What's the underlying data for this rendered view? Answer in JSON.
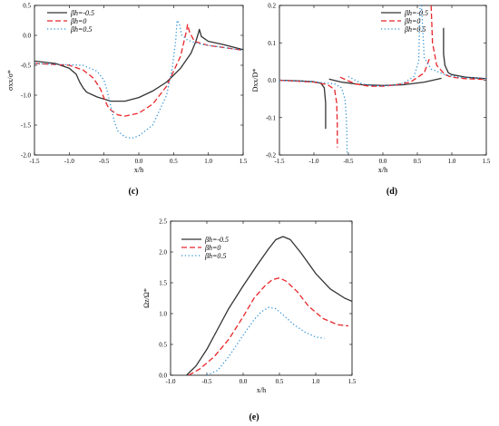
{
  "colors": {
    "series1": "#333333",
    "series2": "#e8262a",
    "series3": "#2a8fd6"
  },
  "chart_data": [
    {
      "type": "line",
      "panel": "(c)",
      "xlabel": "x/h",
      "ylabel": "σxx/σ*",
      "xlim": [
        -1.5,
        1.5
      ],
      "ylim": [
        -2.0,
        0.5
      ],
      "xticks": [
        -1.5,
        -1.0,
        -0.5,
        0.0,
        0.5,
        1.0,
        1.5
      ],
      "yticks": [
        -2.0,
        -1.5,
        -1.0,
        -0.5,
        0.0,
        0.5
      ],
      "xtick_labels": [
        "-1.5",
        "-1.0",
        "-0.5",
        "0.0",
        "0.5",
        "1.0",
        "1.5"
      ],
      "ytick_labels": [
        "-2.0",
        "-1.5",
        "-1.0",
        "-0.5",
        "0.0",
        "0.5"
      ],
      "legend_position": "top-left",
      "series": [
        {
          "name": "βh=-0.5",
          "style": "solid",
          "x": [
            -1.5,
            -1.2,
            -1.0,
            -0.9,
            -0.85,
            -0.8,
            -0.75,
            -0.6,
            -0.4,
            -0.2,
            0.0,
            0.2,
            0.4,
            0.6,
            0.75,
            0.82,
            0.86,
            0.87,
            0.9,
            1.0,
            1.2,
            1.5
          ],
          "y": [
            -0.43,
            -0.47,
            -0.55,
            -0.65,
            -0.78,
            -0.88,
            -0.95,
            -1.03,
            -1.1,
            -1.1,
            -1.04,
            -0.93,
            -0.78,
            -0.55,
            -0.3,
            -0.1,
            0.05,
            0.1,
            -0.02,
            -0.1,
            -0.15,
            -0.24
          ]
        },
        {
          "name": "βh=0",
          "style": "dashed",
          "x": [
            -1.5,
            -1.0,
            -0.8,
            -0.65,
            -0.55,
            -0.5,
            -0.45,
            -0.4,
            -0.3,
            -0.2,
            0.0,
            0.2,
            0.4,
            0.5,
            0.6,
            0.66,
            0.69,
            0.7,
            0.73,
            0.8,
            1.0,
            1.2,
            1.5
          ],
          "y": [
            -0.47,
            -0.5,
            -0.58,
            -0.72,
            -0.9,
            -1.05,
            -1.18,
            -1.25,
            -1.33,
            -1.35,
            -1.3,
            -1.15,
            -0.85,
            -0.6,
            -0.35,
            -0.05,
            0.1,
            0.18,
            0.05,
            -0.1,
            -0.17,
            -0.2,
            -0.25
          ]
        },
        {
          "name": "βh=0.5",
          "style": "dotted",
          "x": [
            -1.5,
            -0.8,
            -0.6,
            -0.5,
            -0.45,
            -0.4,
            -0.35,
            -0.3,
            -0.2,
            -0.1,
            0.0,
            0.2,
            0.4,
            0.48,
            0.53,
            0.55,
            0.58,
            0.62,
            0.7,
            0.9,
            1.2,
            1.5
          ],
          "y": [
            -0.47,
            -0.5,
            -0.6,
            -0.75,
            -0.95,
            -1.2,
            -1.45,
            -1.6,
            -1.7,
            -1.72,
            -1.68,
            -1.5,
            -1.0,
            -0.55,
            -0.1,
            0.25,
            0.2,
            0.0,
            -0.08,
            -0.15,
            -0.2,
            -0.25
          ]
        }
      ]
    },
    {
      "type": "line",
      "panel": "(d)",
      "xlabel": "x/h",
      "ylabel": "Dxx/D*",
      "xlim": [
        -1.5,
        1.5
      ],
      "ylim": [
        -0.2,
        0.2
      ],
      "xticks": [
        -1.5,
        -1.0,
        -0.5,
        0.0,
        0.5,
        1.0,
        1.5
      ],
      "yticks": [
        -0.2,
        -0.1,
        0.0,
        0.1,
        0.2
      ],
      "xtick_labels": [
        "-1.5",
        "-1.0",
        "-0.5",
        "0.0",
        "0.5",
        "1.0",
        "1.5"
      ],
      "ytick_labels": [
        "-0.2",
        "-0.1",
        "0.0",
        "0.1",
        "0.2"
      ],
      "legend_position": "top-right",
      "series": [
        {
          "name": "βh=-0.5",
          "style": "solid",
          "segments": [
            {
              "x": [
                -1.5,
                -1.2,
                -1.0,
                -0.9,
                -0.85,
                -0.83,
                -0.83
              ],
              "y": [
                0.0,
                -0.002,
                -0.004,
                -0.008,
                -0.02,
                -0.06,
                -0.13
              ]
            },
            {
              "x": [
                -0.78,
                -0.6,
                -0.3,
                0.0,
                0.3,
                0.6,
                0.85
              ],
              "y": [
                0.003,
                -0.005,
                -0.012,
                -0.014,
                -0.012,
                -0.005,
                0.005
              ]
            },
            {
              "x": [
                0.88,
                0.88,
                0.9,
                0.95,
                1.0,
                1.2,
                1.5
              ],
              "y": [
                0.14,
                0.07,
                0.04,
                0.02,
                0.015,
                0.008,
                0.004
              ]
            }
          ]
        },
        {
          "name": "βh=0",
          "style": "dashed",
          "segments": [
            {
              "x": [
                -1.5,
                -1.0,
                -0.8,
                -0.7,
                -0.67,
                -0.66,
                -0.66
              ],
              "y": [
                0.0,
                -0.005,
                -0.012,
                -0.025,
                -0.06,
                -0.12,
                -0.18
              ]
            },
            {
              "x": [
                -0.62,
                -0.4,
                -0.2,
                0.0,
                0.2,
                0.4,
                0.6,
                0.68
              ],
              "y": [
                0.008,
                -0.01,
                -0.016,
                -0.016,
                -0.012,
                -0.005,
                0.02,
                0.06
              ]
            },
            {
              "x": [
                0.7,
                0.72,
                0.78,
                0.9,
                1.0,
                1.2,
                1.5
              ],
              "y": [
                0.2,
                0.1,
                0.04,
                0.015,
                0.008,
                0.004,
                0.002
              ]
            }
          ]
        },
        {
          "name": "βh=0.5",
          "style": "dotted",
          "segments": [
            {
              "x": [
                -1.5,
                -1.0,
                -0.7,
                -0.6,
                -0.55,
                -0.53,
                -0.52,
                -0.52
              ],
              "y": [
                0.0,
                -0.004,
                -0.01,
                -0.02,
                -0.05,
                -0.1,
                -0.16,
                -0.2
              ]
            },
            {
              "x": [
                -0.5,
                -0.3,
                -0.1,
                0.1,
                0.3,
                0.45,
                0.52,
                0.54
              ],
              "y": [
                0.01,
                -0.01,
                -0.015,
                -0.014,
                -0.008,
                0.01,
                0.05,
                0.2
              ]
            },
            {
              "x": [
                0.56,
                0.6,
                0.7,
                0.9,
                1.1,
                1.5
              ],
              "y": [
                0.2,
                0.06,
                0.03,
                0.015,
                0.008,
                0.004
              ]
            }
          ]
        }
      ]
    },
    {
      "type": "line",
      "panel": "(e)",
      "xlabel": "x/h",
      "ylabel": "Ωz/Ω*",
      "xlim": [
        -1.0,
        1.5
      ],
      "ylim": [
        0.0,
        2.5
      ],
      "xticks": [
        -1.0,
        -0.5,
        0.0,
        0.5,
        1.0,
        1.5
      ],
      "yticks": [
        0.0,
        0.5,
        1.0,
        1.5,
        2.0,
        2.5
      ],
      "xtick_labels": [
        "-1.0",
        "-0.5",
        "0.0",
        "0.5",
        "1.0",
        "1.5"
      ],
      "ytick_labels": [
        "0.0",
        "0.5",
        "1.0",
        "1.5",
        "2.0",
        "2.5"
      ],
      "legend_position": "top-left",
      "series": [
        {
          "name": "βh=-0.5",
          "style": "solid",
          "x": [
            -0.78,
            -0.65,
            -0.5,
            -0.35,
            -0.2,
            0.0,
            0.2,
            0.35,
            0.45,
            0.55,
            0.65,
            0.8,
            1.0,
            1.2,
            1.4,
            1.5
          ],
          "y": [
            0.0,
            0.15,
            0.42,
            0.75,
            1.08,
            1.45,
            1.8,
            2.05,
            2.2,
            2.25,
            2.2,
            1.98,
            1.65,
            1.4,
            1.25,
            1.2
          ]
        },
        {
          "name": "βh=0",
          "style": "dashed",
          "x": [
            -0.75,
            -0.6,
            -0.4,
            -0.2,
            0.0,
            0.15,
            0.3,
            0.4,
            0.5,
            0.6,
            0.75,
            0.9,
            1.1,
            1.3,
            1.45
          ],
          "y": [
            0.0,
            0.1,
            0.3,
            0.58,
            0.95,
            1.25,
            1.45,
            1.55,
            1.58,
            1.52,
            1.35,
            1.12,
            0.92,
            0.82,
            0.8
          ]
        },
        {
          "name": "βh=0.5",
          "style": "dotted",
          "x": [
            -0.5,
            -0.35,
            -0.2,
            0.0,
            0.15,
            0.25,
            0.35,
            0.45,
            0.55,
            0.7,
            0.85,
            1.0,
            1.12
          ],
          "y": [
            0.0,
            0.08,
            0.3,
            0.65,
            0.9,
            1.03,
            1.1,
            1.08,
            0.98,
            0.82,
            0.7,
            0.62,
            0.6
          ]
        }
      ]
    }
  ]
}
